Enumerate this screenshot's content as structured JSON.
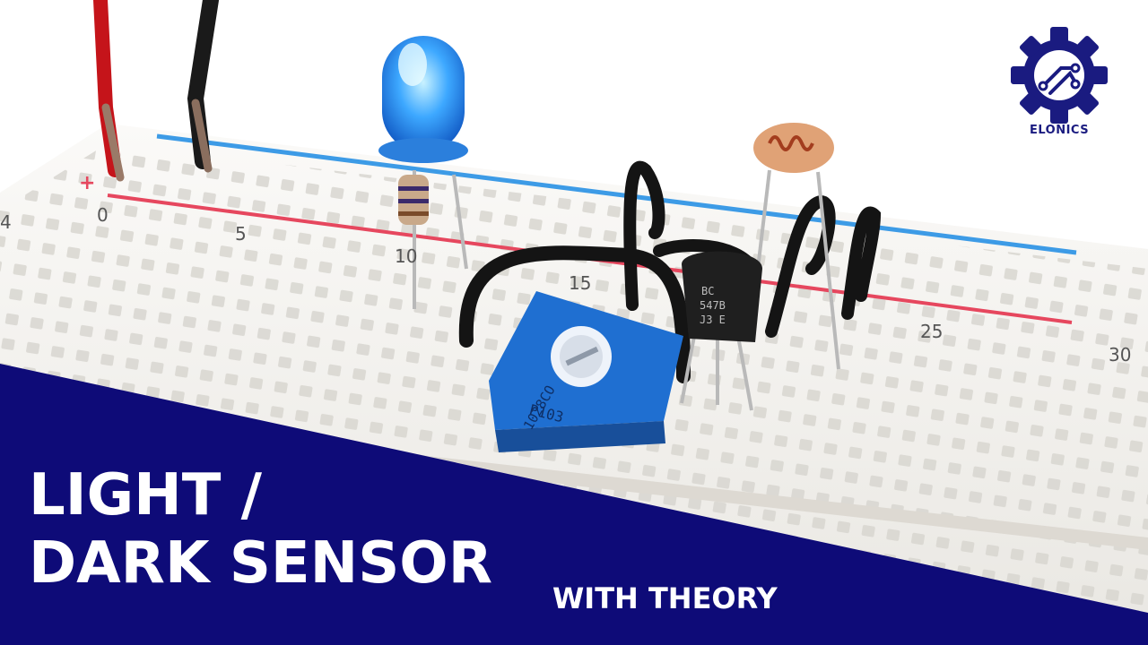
{
  "logo": {
    "text": "ELONICS",
    "color": "#1a1b80"
  },
  "title": {
    "line1": "LIGHT /",
    "line2": "DARK SENSOR"
  },
  "subtitle": "WITH THEORY",
  "breadboard": {
    "rail_plus": "+",
    "column_numbers": [
      "0",
      "5",
      "10",
      "15",
      "25",
      "30"
    ],
    "partial_number": "4"
  },
  "components": {
    "potentiometer_lines": [
      "P103",
      "1028CO"
    ],
    "transistor_lines": [
      "BC",
      "547B",
      "J3 E"
    ]
  },
  "colors": {
    "banner": "#0e0b78",
    "breadboard": "#f2f1ee",
    "blue_rail": "#3d9be6",
    "red_rail": "#e6475e",
    "potentiometer": "#1f6fd1",
    "led": "#3da8ff",
    "wire": "#1a1a1a"
  }
}
